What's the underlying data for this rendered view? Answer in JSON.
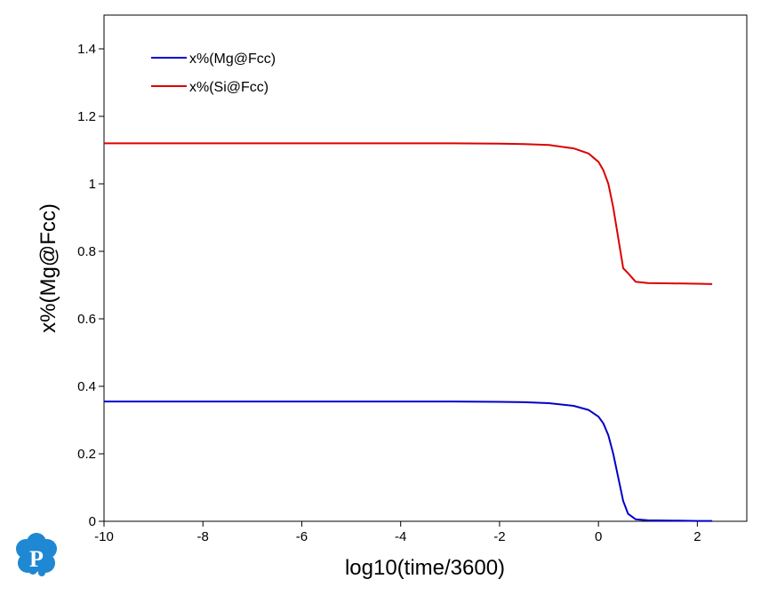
{
  "chart_data": {
    "type": "line",
    "xlabel": "log10(time/3600)",
    "ylabel": "x%(Mg@Fcc)",
    "xlim": [
      -10,
      3
    ],
    "ylim": [
      0,
      1.5
    ],
    "xticks": [
      "-10",
      "-8",
      "-6",
      "-4",
      "-2",
      "0",
      "2"
    ],
    "yticks": [
      "0",
      "0.2",
      "0.4",
      "0.6",
      "0.8",
      "1",
      "1.2",
      "1.4"
    ],
    "grid": false,
    "legend_position": "top-left",
    "series": [
      {
        "name": "x%(Mg@Fcc)",
        "color": "#0000cc",
        "x": [
          -10,
          -8,
          -6,
          -4,
          -3,
          -2,
          -1.5,
          -1,
          -0.5,
          -0.2,
          0,
          0.1,
          0.2,
          0.3,
          0.4,
          0.5,
          0.6,
          0.75,
          1,
          1.5,
          2,
          2.3
        ],
        "y": [
          0.355,
          0.355,
          0.355,
          0.355,
          0.355,
          0.354,
          0.353,
          0.35,
          0.342,
          0.33,
          0.31,
          0.29,
          0.255,
          0.2,
          0.13,
          0.06,
          0.022,
          0.006,
          0.003,
          0.002,
          0.001,
          0.001
        ]
      },
      {
        "name": "x%(Si@Fcc)",
        "color": "#dd0000",
        "x": [
          -10,
          -8,
          -6,
          -4,
          -3,
          -2,
          -1.5,
          -1,
          -0.5,
          -0.2,
          0,
          0.1,
          0.2,
          0.3,
          0.4,
          0.5,
          0.6,
          0.75,
          1,
          1.5,
          2,
          2.3
        ],
        "y": [
          1.12,
          1.12,
          1.12,
          1.12,
          1.12,
          1.119,
          1.118,
          1.115,
          1.105,
          1.09,
          1.065,
          1.04,
          1.0,
          0.93,
          0.84,
          0.75,
          0.735,
          0.71,
          0.706,
          0.705,
          0.704,
          0.703
        ]
      }
    ]
  },
  "logo": {
    "letter": "P",
    "color": "#1e88d2"
  }
}
